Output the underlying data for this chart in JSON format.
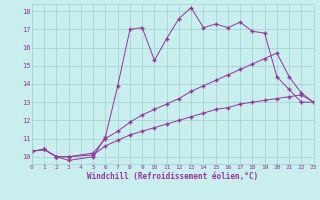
{
  "xlabel": "Windchill (Refroidissement éolien,°C)",
  "bg_color": "#c8eeee",
  "grid_color": "#9ed4d4",
  "line_color": "#993399",
  "xlim": [
    0,
    23
  ],
  "ylim": [
    9.6,
    18.4
  ],
  "xticks": [
    0,
    1,
    2,
    3,
    4,
    5,
    6,
    7,
    8,
    9,
    10,
    11,
    12,
    13,
    14,
    15,
    16,
    17,
    18,
    19,
    20,
    21,
    22,
    23
  ],
  "yticks": [
    10,
    11,
    12,
    13,
    14,
    15,
    16,
    17,
    18
  ],
  "line1_x": [
    0,
    1,
    2,
    3,
    5,
    6,
    7,
    8,
    9,
    10,
    11,
    12,
    13,
    14,
    15,
    16,
    17,
    18,
    19,
    20,
    21,
    22,
    23
  ],
  "line1_y": [
    10.3,
    10.4,
    10.0,
    9.8,
    10.0,
    11.1,
    13.9,
    17.0,
    17.1,
    15.3,
    16.5,
    17.6,
    18.2,
    17.1,
    17.3,
    17.1,
    17.4,
    16.9,
    16.8,
    14.4,
    13.7,
    13.0,
    13.0
  ],
  "line2_x": [
    0,
    1,
    2,
    3,
    5,
    6,
    7,
    8,
    9,
    10,
    11,
    12,
    13,
    14,
    15,
    16,
    17,
    18,
    19,
    20,
    21,
    22,
    23
  ],
  "line2_y": [
    10.3,
    10.4,
    10.0,
    10.0,
    10.2,
    11.0,
    11.4,
    11.9,
    12.3,
    12.6,
    12.9,
    13.2,
    13.6,
    13.9,
    14.2,
    14.5,
    14.8,
    15.1,
    15.4,
    15.7,
    14.4,
    13.5,
    13.0
  ],
  "line3_x": [
    0,
    1,
    2,
    3,
    5,
    6,
    7,
    8,
    9,
    10,
    11,
    12,
    13,
    14,
    15,
    16,
    17,
    18,
    19,
    20,
    21,
    22,
    23
  ],
  "line3_y": [
    10.3,
    10.4,
    10.0,
    10.0,
    10.1,
    10.6,
    10.9,
    11.2,
    11.4,
    11.6,
    11.8,
    12.0,
    12.2,
    12.4,
    12.6,
    12.7,
    12.9,
    13.0,
    13.1,
    13.2,
    13.3,
    13.4,
    13.0
  ]
}
